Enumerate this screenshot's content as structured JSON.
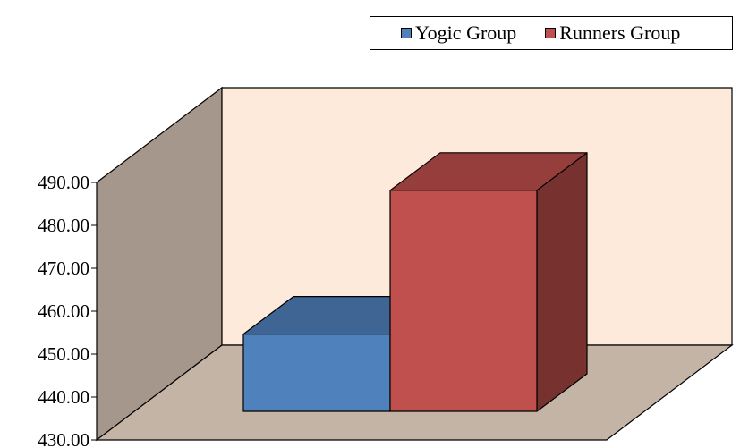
{
  "chart_data": {
    "type": "bar",
    "three_d": true,
    "categories": [
      "Yogic Group",
      "Runners Group"
    ],
    "series": [
      {
        "name": "Yogic Group",
        "value": 448.0,
        "color": "#4F81BD"
      },
      {
        "name": "Runners Group",
        "value": 481.5,
        "color": "#C0504D"
      }
    ],
    "ylim": [
      430,
      490
    ],
    "yticks": [
      "430.00",
      "440.00",
      "450.00",
      "460.00",
      "470.00",
      "480.00",
      "490.00"
    ],
    "legend_position": "top-right",
    "colors": {
      "back_wall": "#FDEADA",
      "side_wall": "#A5978C",
      "floor": "#C4B4A6"
    }
  }
}
